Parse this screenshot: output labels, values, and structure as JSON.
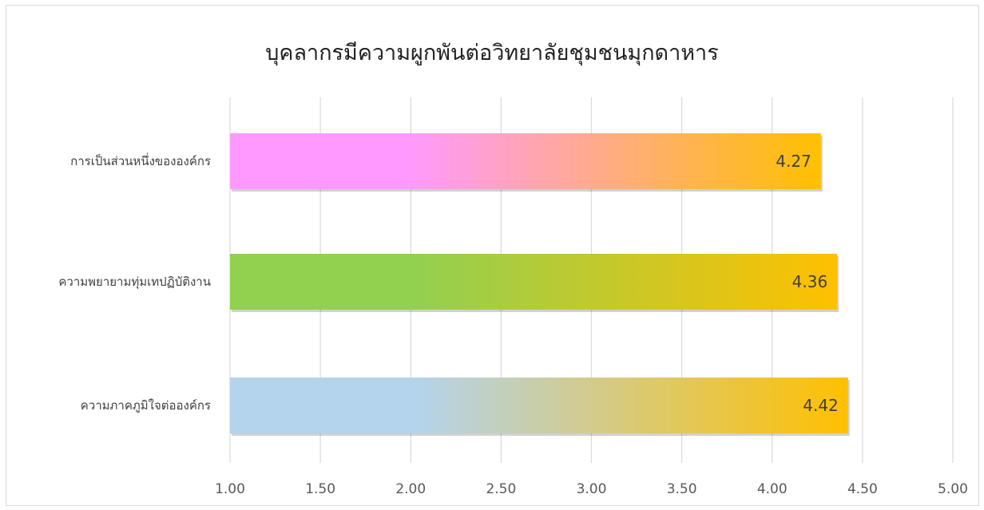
{
  "chart_data": {
    "type": "bar",
    "orientation": "horizontal",
    "title": "บุคลากรมีความผูกพันต่อวิทยาลัยชุมชนมุกดาหาร",
    "categories": [
      "การเป็นส่วนหนึ่งขององค์กร",
      "ความพยายามทุ่มเทปฏิบัติงาน",
      "ความภาคภูมิใจต่อองค์กร"
    ],
    "values": [
      4.27,
      4.36,
      4.42
    ],
    "data_labels": [
      "4.27",
      "4.36",
      "4.42"
    ],
    "xlim": [
      1.0,
      5.0
    ],
    "ticks": [
      "1.00",
      "1.50",
      "2.00",
      "2.50",
      "3.00",
      "3.50",
      "4.00",
      "4.50",
      "5.00"
    ],
    "grid": true,
    "legend": "none",
    "bar_gradients": [
      [
        "#ff99ff",
        "#ffc000"
      ],
      [
        "#92d050",
        "#ffc000"
      ],
      [
        "#b4d3ec",
        "#ffc000"
      ]
    ],
    "gridline_color": "#d9d9d9"
  }
}
